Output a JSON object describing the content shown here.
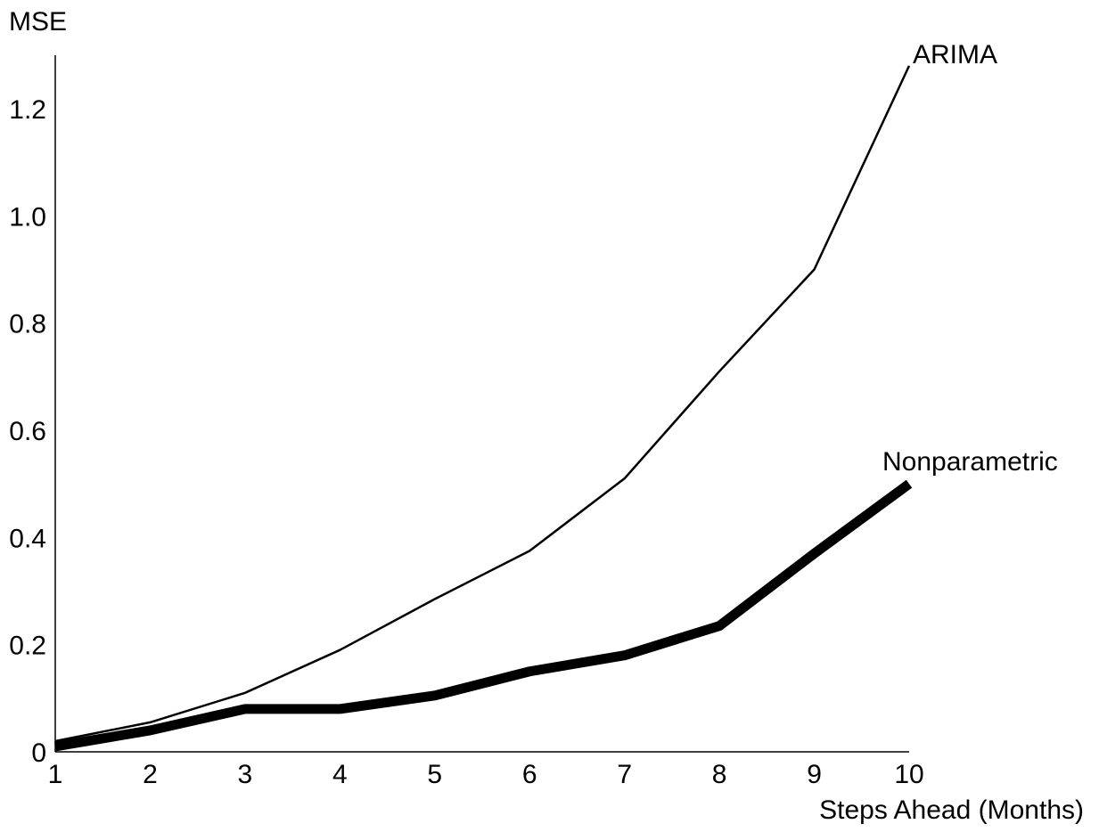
{
  "chart_data": {
    "type": "line",
    "xlabel": "Steps Ahead (Months)",
    "ylabel": "MSE",
    "xlim": [
      1,
      10
    ],
    "ylim": [
      0,
      1.3
    ],
    "grid": false,
    "legend": "inline labels at line ends",
    "x_ticks": [
      "1",
      "2",
      "3",
      "4",
      "5",
      "6",
      "7",
      "8",
      "9",
      "10"
    ],
    "y_ticks": [
      "0",
      "0.2",
      "0.4",
      "0.6",
      "0.8",
      "1.0",
      "1.2"
    ],
    "x": [
      1,
      2,
      3,
      4,
      5,
      6,
      7,
      8,
      9,
      10
    ],
    "series": [
      {
        "name": "ARIMA",
        "values": [
          0.02,
          0.055,
          0.11,
          0.19,
          0.285,
          0.375,
          0.51,
          0.71,
          0.9,
          1.28
        ],
        "color": "#000000"
      },
      {
        "name": "Nonparametric",
        "values": [
          0.01,
          0.04,
          0.08,
          0.08,
          0.105,
          0.15,
          0.18,
          0.235,
          0.37,
          0.5
        ],
        "color": "#000000"
      }
    ]
  }
}
